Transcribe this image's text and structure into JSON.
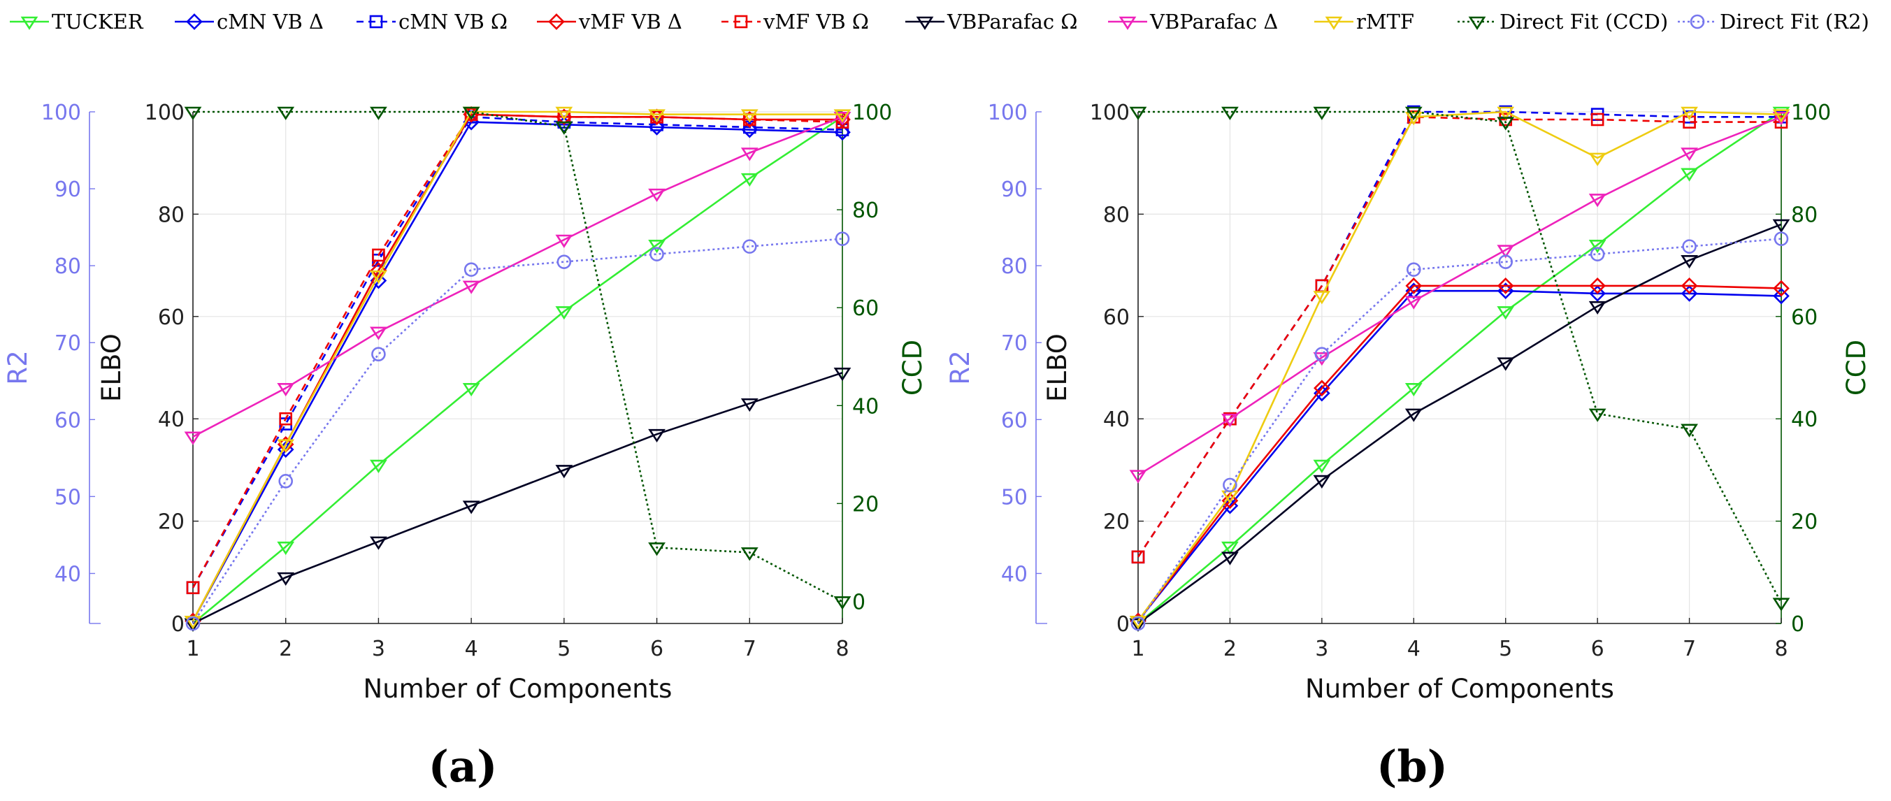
{
  "legend": [
    {
      "name": "TUCKER",
      "color": "#33ee33",
      "dash": "solid",
      "marker": "tri"
    },
    {
      "name": "cMN VB Δ",
      "color": "#0000ee",
      "dash": "solid",
      "marker": "diamond"
    },
    {
      "name": "cMN VB Ω",
      "color": "#0000ee",
      "dash": "dashed",
      "marker": "square"
    },
    {
      "name": "vMF VB Δ",
      "color": "#ee0000",
      "dash": "solid",
      "marker": "diamond"
    },
    {
      "name": "vMF VB Ω",
      "color": "#ee0000",
      "dash": "dashed",
      "marker": "square"
    },
    {
      "name": "VBParafac Ω",
      "color": "#000022",
      "dash": "solid",
      "marker": "tri"
    },
    {
      "name": "VBParafac Δ",
      "color": "#ee22bb",
      "dash": "solid",
      "marker": "tri"
    },
    {
      "name": "rMTF",
      "color": "#eecc11",
      "dash": "solid",
      "marker": "tri"
    },
    {
      "name": "Direct Fit (CCD)",
      "color": "#005500",
      "dash": "dotted",
      "marker": "tri"
    },
    {
      "name": "Direct Fit (R2)",
      "color": "#7777ee",
      "dash": "dotted",
      "marker": "circle"
    }
  ],
  "chart_data": [
    {
      "type": "line",
      "panel_label": "(a)",
      "xlabel": "Number of Components",
      "ylabel": "ELBO",
      "ylabel_left": "R2",
      "ylabel_right": "CCD",
      "x": [
        1,
        2,
        3,
        4,
        5,
        6,
        7,
        8
      ],
      "xticks": [
        "1",
        "2",
        "3",
        "4",
        "5",
        "6",
        "7",
        "8"
      ],
      "ylim": [
        0,
        100
      ],
      "yticks": [
        "0",
        "20",
        "40",
        "60",
        "80",
        "100"
      ],
      "r2_lim": [
        33.5,
        100
      ],
      "r2_ticks": [
        "40",
        "50",
        "60",
        "70",
        "80",
        "90",
        "100"
      ],
      "ccd_lim": [
        -4.5,
        100
      ],
      "ccd_ticks": [
        "0",
        "20",
        "40",
        "60",
        "80",
        "100"
      ],
      "series": [
        {
          "name": "TUCKER",
          "axis": "elbo",
          "values": [
            0,
            15,
            31,
            46,
            61,
            74,
            87,
            99
          ]
        },
        {
          "name": "cMN VB Δ",
          "axis": "elbo",
          "values": [
            0.5,
            34,
            67,
            98,
            97.5,
            97,
            96.5,
            96
          ]
        },
        {
          "name": "cMN VB Ω",
          "axis": "elbo",
          "values": [
            7,
            39,
            71,
            99,
            98,
            97.5,
            97,
            96.5
          ]
        },
        {
          "name": "vMF VB Δ",
          "axis": "elbo",
          "values": [
            0.5,
            35,
            69,
            99.5,
            99,
            99,
            98.5,
            98.5
          ]
        },
        {
          "name": "vMF VB Ω",
          "axis": "elbo",
          "values": [
            7,
            40,
            72,
            99.5,
            99,
            99,
            98.5,
            98
          ]
        },
        {
          "name": "VBParafac Ω",
          "axis": "elbo",
          "values": [
            0,
            9,
            16,
            23,
            30,
            37,
            43,
            49
          ]
        },
        {
          "name": "VBParafac Δ",
          "axis": "elbo",
          "values": [
            36.5,
            46,
            57,
            66,
            75,
            84,
            92,
            99
          ]
        },
        {
          "name": "rMTF",
          "axis": "elbo",
          "values": [
            0.5,
            35,
            68,
            100,
            100,
            99.5,
            99.5,
            99.5
          ]
        },
        {
          "name": "Direct Fit (CCD)",
          "axis": "ccd",
          "values": [
            100,
            100,
            100,
            100,
            97,
            11,
            10,
            0
          ]
        },
        {
          "name": "Direct Fit (R2)",
          "axis": "r2",
          "values": [
            33.5,
            52,
            68.5,
            79.5,
            80.5,
            81.5,
            82.5,
            83.5
          ]
        }
      ]
    },
    {
      "type": "line",
      "panel_label": "(b)",
      "xlabel": "Number of Components",
      "ylabel": "ELBO",
      "ylabel_left": "R2",
      "ylabel_right": "CCD",
      "x": [
        1,
        2,
        3,
        4,
        5,
        6,
        7,
        8
      ],
      "xticks": [
        "1",
        "2",
        "3",
        "4",
        "5",
        "6",
        "7",
        "8"
      ],
      "ylim": [
        0,
        100
      ],
      "yticks": [
        "0",
        "20",
        "40",
        "60",
        "80",
        "100"
      ],
      "r2_lim": [
        33.5,
        100
      ],
      "r2_ticks": [
        "40",
        "50",
        "60",
        "70",
        "80",
        "90",
        "100"
      ],
      "ccd_lim": [
        0,
        100
      ],
      "ccd_ticks": [
        "0",
        "20",
        "40",
        "60",
        "80",
        "100"
      ],
      "series": [
        {
          "name": "TUCKER",
          "axis": "elbo",
          "values": [
            0,
            15,
            31,
            46,
            61,
            74,
            88,
            100
          ]
        },
        {
          "name": "cMN VB Δ",
          "axis": "elbo",
          "values": [
            0.5,
            23,
            45,
            65,
            65,
            64.5,
            64.5,
            64
          ]
        },
        {
          "name": "cMN VB Ω",
          "axis": "elbo",
          "values": [
            13,
            40,
            66,
            100,
            100,
            99.5,
            99,
            99
          ]
        },
        {
          "name": "vMF VB Δ",
          "axis": "elbo",
          "values": [
            0.5,
            24,
            46,
            66,
            66,
            66,
            66,
            65.5
          ]
        },
        {
          "name": "vMF VB Ω",
          "axis": "elbo",
          "values": [
            13,
            40,
            66,
            99,
            98.5,
            98.5,
            98,
            98
          ]
        },
        {
          "name": "VBParafac Ω",
          "axis": "elbo",
          "values": [
            0,
            13,
            28,
            41,
            51,
            62,
            71,
            78
          ]
        },
        {
          "name": "VBParafac Δ",
          "axis": "elbo",
          "values": [
            29,
            40,
            52,
            63,
            73,
            83,
            92,
            99
          ]
        },
        {
          "name": "rMTF",
          "axis": "elbo",
          "values": [
            0.5,
            25,
            64,
            99,
            100,
            91,
            100,
            99.5
          ]
        },
        {
          "name": "Direct Fit (CCD)",
          "axis": "ccd",
          "values": [
            100,
            100,
            100,
            100,
            98,
            41,
            38,
            4
          ]
        },
        {
          "name": "Direct Fit (R2)",
          "axis": "r2",
          "values": [
            33.5,
            51.5,
            68.5,
            79.5,
            80.5,
            81.5,
            82.5,
            83.5
          ]
        }
      ]
    }
  ]
}
